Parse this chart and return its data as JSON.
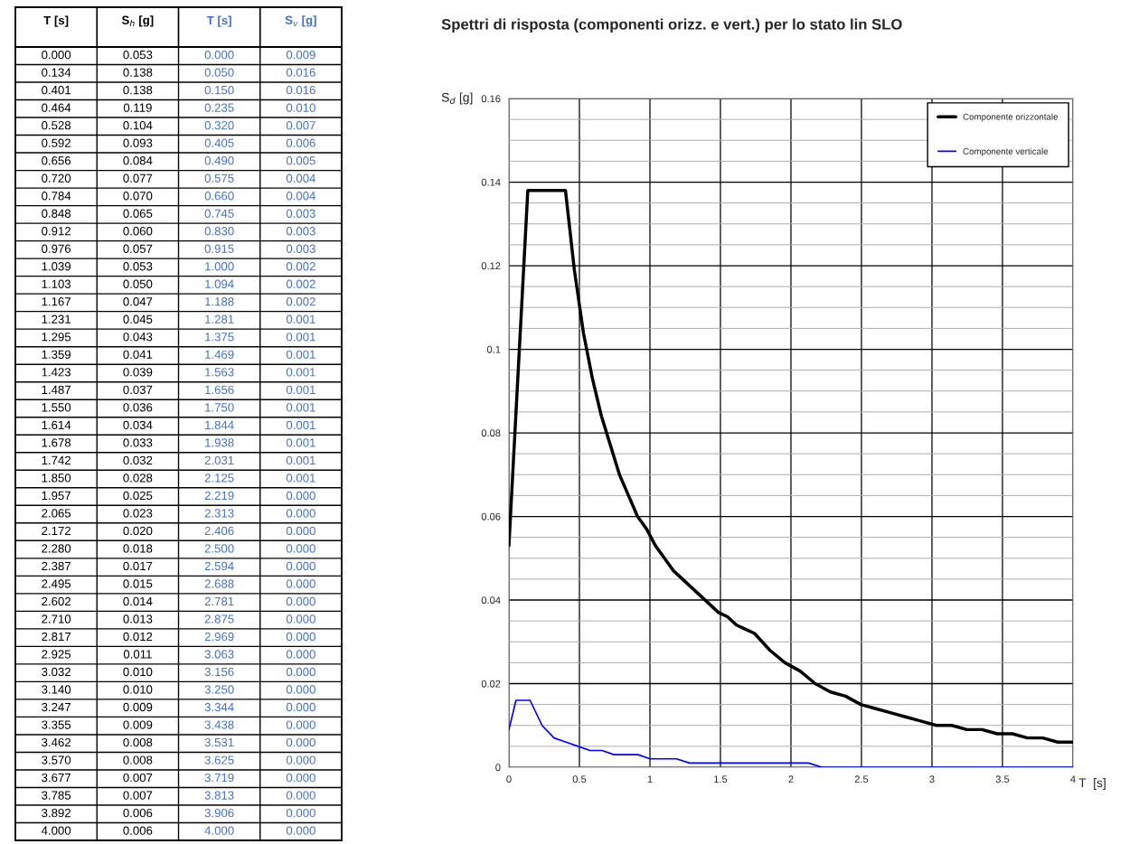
{
  "chart_data": [
    {
      "type": "other",
      "categories": [
        "T [s]",
        "S$_{h}$ [g]",
        "T [s]",
        "S$_{v}$ [g]"
      ],
      "colors": [
        "#000000",
        "#000000",
        "#4472c4",
        "#4472c4"
      ],
      "cell_labels": [
        [
          "0.000",
          "0.053",
          "0.000",
          "0.009"
        ],
        [
          "0.134",
          "0.138",
          "0.050",
          "0.016"
        ],
        [
          "0.401",
          "0.138",
          "0.150",
          "0.016"
        ],
        [
          "0.464",
          "0.119",
          "0.235",
          "0.010"
        ],
        [
          "0.528",
          "0.104",
          "0.320",
          "0.007"
        ],
        [
          "0.592",
          "0.093",
          "0.405",
          "0.006"
        ],
        [
          "0.656",
          "0.084",
          "0.490",
          "0.005"
        ],
        [
          "0.720",
          "0.077",
          "0.575",
          "0.004"
        ],
        [
          "0.784",
          "0.070",
          "0.660",
          "0.004"
        ],
        [
          "0.848",
          "0.065",
          "0.745",
          "0.003"
        ],
        [
          "0.912",
          "0.060",
          "0.830",
          "0.003"
        ],
        [
          "0.976",
          "0.057",
          "0.915",
          "0.003"
        ],
        [
          "1.039",
          "0.053",
          "1.000",
          "0.002"
        ],
        [
          "1.103",
          "0.050",
          "1.094",
          "0.002"
        ],
        [
          "1.167",
          "0.047",
          "1.188",
          "0.002"
        ],
        [
          "1.231",
          "0.045",
          "1.281",
          "0.001"
        ],
        [
          "1.295",
          "0.043",
          "1.375",
          "0.001"
        ],
        [
          "1.359",
          "0.041",
          "1.469",
          "0.001"
        ],
        [
          "1.423",
          "0.039",
          "1.563",
          "0.001"
        ],
        [
          "1.487",
          "0.037",
          "1.656",
          "0.001"
        ],
        [
          "1.550",
          "0.036",
          "1.750",
          "0.001"
        ],
        [
          "1.614",
          "0.034",
          "1.844",
          "0.001"
        ],
        [
          "1.678",
          "0.033",
          "1.938",
          "0.001"
        ],
        [
          "1.742",
          "0.032",
          "2.031",
          "0.001"
        ],
        [
          "1.850",
          "0.028",
          "2.125",
          "0.001"
        ],
        [
          "1.957",
          "0.025",
          "2.219",
          "0.000"
        ],
        [
          "2.065",
          "0.023",
          "2.313",
          "0.000"
        ],
        [
          "2.172",
          "0.020",
          "2.406",
          "0.000"
        ],
        [
          "2.280",
          "0.018",
          "2.500",
          "0.000"
        ],
        [
          "2.387",
          "0.017",
          "2.594",
          "0.000"
        ],
        [
          "2.495",
          "0.015",
          "2.688",
          "0.000"
        ],
        [
          "2.602",
          "0.014",
          "2.781",
          "0.000"
        ],
        [
          "2.710",
          "0.013",
          "2.875",
          "0.000"
        ],
        [
          "2.817",
          "0.012",
          "2.969",
          "0.000"
        ],
        [
          "2.925",
          "0.011",
          "3.063",
          "0.000"
        ],
        [
          "3.032",
          "0.010",
          "3.156",
          "0.000"
        ],
        [
          "3.140",
          "0.010",
          "3.250",
          "0.000"
        ],
        [
          "3.247",
          "0.009",
          "3.344",
          "0.000"
        ],
        [
          "3.355",
          "0.009",
          "3.438",
          "0.000"
        ],
        [
          "3.462",
          "0.008",
          "3.531",
          "0.000"
        ],
        [
          "3.570",
          "0.008",
          "3.625",
          "0.000"
        ],
        [
          "3.677",
          "0.007",
          "3.719",
          "0.000"
        ],
        [
          "3.785",
          "0.007",
          "3.813",
          "0.000"
        ],
        [
          "3.892",
          "0.006",
          "3.906",
          "0.000"
        ],
        [
          "4.000",
          "0.006",
          "4.000",
          "0.000"
        ]
      ]
    },
    {
      "type": "line",
      "title": "Spettri di risposta (componenti orizz. e vert.) per lo stato lin SLO",
      "xlabel": "T  [s]",
      "ylabel": "S$_{d}$ [g]",
      "series": [
        {
          "name": "Componente orizzontale",
          "color": "#000000",
          "x": [
            0.0,
            0.134,
            0.401,
            0.464,
            0.528,
            0.592,
            0.656,
            0.72,
            0.784,
            0.848,
            0.912,
            0.976,
            1.039,
            1.103,
            1.167,
            1.231,
            1.295,
            1.359,
            1.423,
            1.487,
            1.55,
            1.614,
            1.678,
            1.742,
            1.85,
            1.957,
            2.065,
            2.172,
            2.28,
            2.387,
            2.495,
            2.602,
            2.71,
            2.817,
            2.925,
            3.032,
            3.14,
            3.247,
            3.355,
            3.462,
            3.57,
            3.677,
            3.785,
            3.892,
            4.0
          ],
          "values": [
            0.053,
            0.138,
            0.138,
            0.119,
            0.104,
            0.093,
            0.084,
            0.077,
            0.07,
            0.065,
            0.06,
            0.057,
            0.053,
            0.05,
            0.047,
            0.045,
            0.043,
            0.041,
            0.039,
            0.037,
            0.036,
            0.034,
            0.033,
            0.032,
            0.028,
            0.025,
            0.023,
            0.02,
            0.018,
            0.017,
            0.015,
            0.014,
            0.013,
            0.012,
            0.011,
            0.01,
            0.01,
            0.009,
            0.009,
            0.008,
            0.008,
            0.007,
            0.007,
            0.006,
            0.006
          ]
        },
        {
          "name": "Componente verticale",
          "color": "#0000ff",
          "x": [
            0.0,
            0.05,
            0.15,
            0.235,
            0.32,
            0.405,
            0.49,
            0.575,
            0.66,
            0.745,
            0.83,
            0.915,
            1.0,
            1.094,
            1.188,
            1.281,
            1.375,
            1.469,
            1.563,
            1.656,
            1.75,
            1.844,
            1.938,
            2.031,
            2.125,
            2.219,
            2.313,
            2.406,
            2.5,
            2.594,
            2.688,
            2.781,
            2.875,
            2.969,
            3.063,
            3.156,
            3.25,
            3.344,
            3.438,
            3.531,
            3.625,
            3.719,
            3.813,
            3.906,
            4.0
          ],
          "values": [
            0.009,
            0.016,
            0.016,
            0.01,
            0.007,
            0.006,
            0.005,
            0.004,
            0.004,
            0.003,
            0.003,
            0.003,
            0.002,
            0.002,
            0.002,
            0.001,
            0.001,
            0.001,
            0.001,
            0.001,
            0.001,
            0.001,
            0.001,
            0.001,
            0.001,
            0.0,
            0.0,
            0.0,
            0.0,
            0.0,
            0.0,
            0.0,
            0.0,
            0.0,
            0.0,
            0.0,
            0.0,
            0.0,
            0.0,
            0.0,
            0.0,
            0.0,
            0.0,
            0.0,
            0.0
          ]
        }
      ],
      "xlim": [
        0,
        4
      ],
      "xticks": [
        0,
        0.5,
        1,
        1.5,
        2,
        2.5,
        3,
        3.5,
        4
      ],
      "ylim": [
        0,
        0.16
      ],
      "yticks": [
        0,
        {
          "value": 0.005,
          "label": null
        },
        {
          "value": 0.01,
          "label": null
        },
        {
          "value": 0.015,
          "label": null
        },
        0.02,
        {
          "value": 0.025,
          "label": null
        },
        {
          "value": 0.03,
          "label": null
        },
        {
          "value": 0.035,
          "label": null
        },
        0.04,
        {
          "value": 0.045,
          "label": null
        },
        {
          "value": 0.05,
          "label": null
        },
        {
          "value": 0.055,
          "label": null
        },
        0.06,
        {
          "value": 0.065,
          "label": null
        },
        {
          "value": 0.07,
          "label": null
        },
        {
          "value": 0.075,
          "label": null
        },
        0.08,
        {
          "value": 0.085,
          "label": null
        },
        {
          "value": 0.09,
          "label": null
        },
        {
          "value": 0.095,
          "label": null
        },
        0.1,
        {
          "value": 0.105,
          "label": null
        },
        {
          "value": 0.11,
          "label": null
        },
        {
          "value": 0.115,
          "label": null
        },
        0.12,
        {
          "value": 0.125,
          "label": null
        },
        {
          "value": 0.13,
          "label": null
        },
        {
          "value": 0.135,
          "label": null
        },
        0.14,
        {
          "value": 0.145,
          "label": null
        },
        {
          "value": 0.15,
          "label": null
        },
        {
          "value": 0.155,
          "label": null
        },
        0.16
      ],
      "grid": true,
      "legend": "top right",
      "marker": "none",
      "line_style": "solid"
    }
  ]
}
